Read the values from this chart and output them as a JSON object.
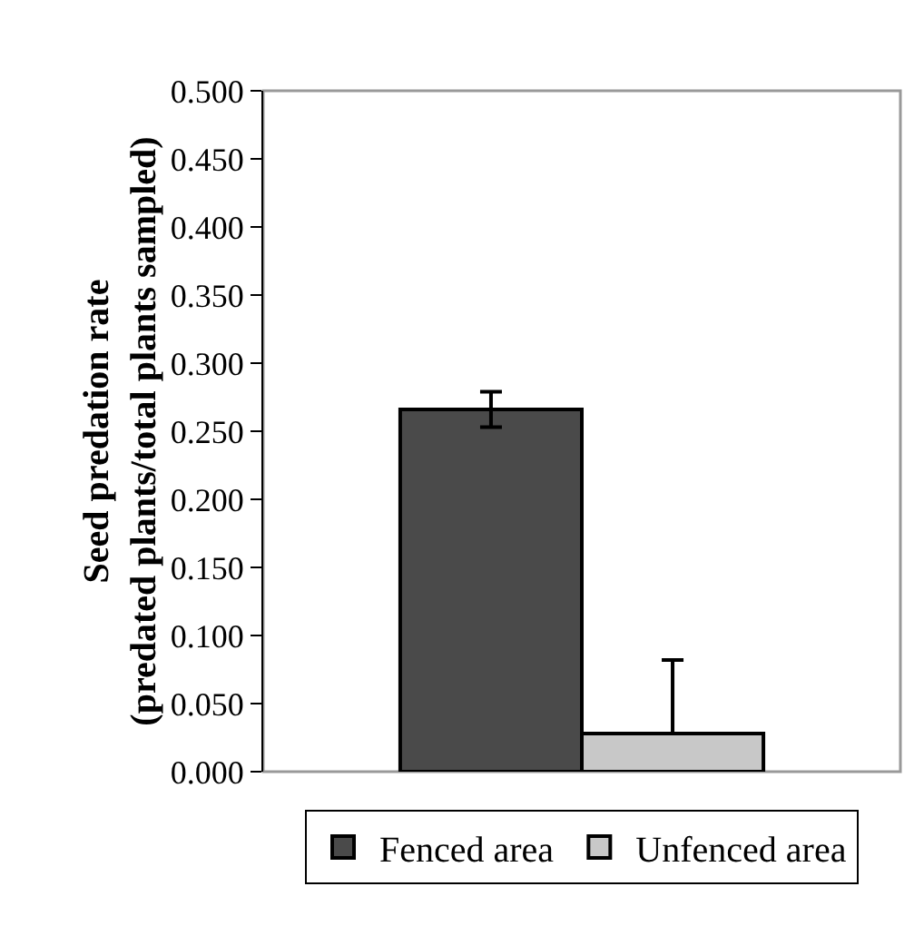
{
  "chart_data": {
    "type": "bar",
    "ylabel": "Seed predation rate\n(predated plants/total plants sampled)",
    "categories": [
      null
    ],
    "series": [
      {
        "name": "Fenced area",
        "color": "#4a4a4a",
        "values": [
          0.266
        ],
        "errors": [
          0.013
        ]
      },
      {
        "name": "Unfenced area",
        "color": "#c8c8c8",
        "values": [
          0.028
        ],
        "errors": [
          [
            0.028,
            0.082
          ]
        ]
      }
    ],
    "ylim": [
      0,
      0.5
    ],
    "yticks": [
      {
        "value": 0,
        "label": "0.000"
      },
      {
        "value": 0.05,
        "label": "0.050"
      },
      {
        "value": 0.1,
        "label": "0.100"
      },
      {
        "value": 0.15,
        "label": "0.150"
      },
      {
        "value": 0.2,
        "label": "0.200"
      },
      {
        "value": 0.25,
        "label": "0.250"
      },
      {
        "value": 0.3,
        "label": "0.300"
      },
      {
        "value": 0.35,
        "label": "0.350"
      },
      {
        "value": 0.4,
        "label": "0.400"
      },
      {
        "value": 0.45,
        "label": "0.450"
      },
      {
        "value": 0.5,
        "label": "0.500"
      }
    ],
    "grid": false,
    "legend": "bottom"
  }
}
